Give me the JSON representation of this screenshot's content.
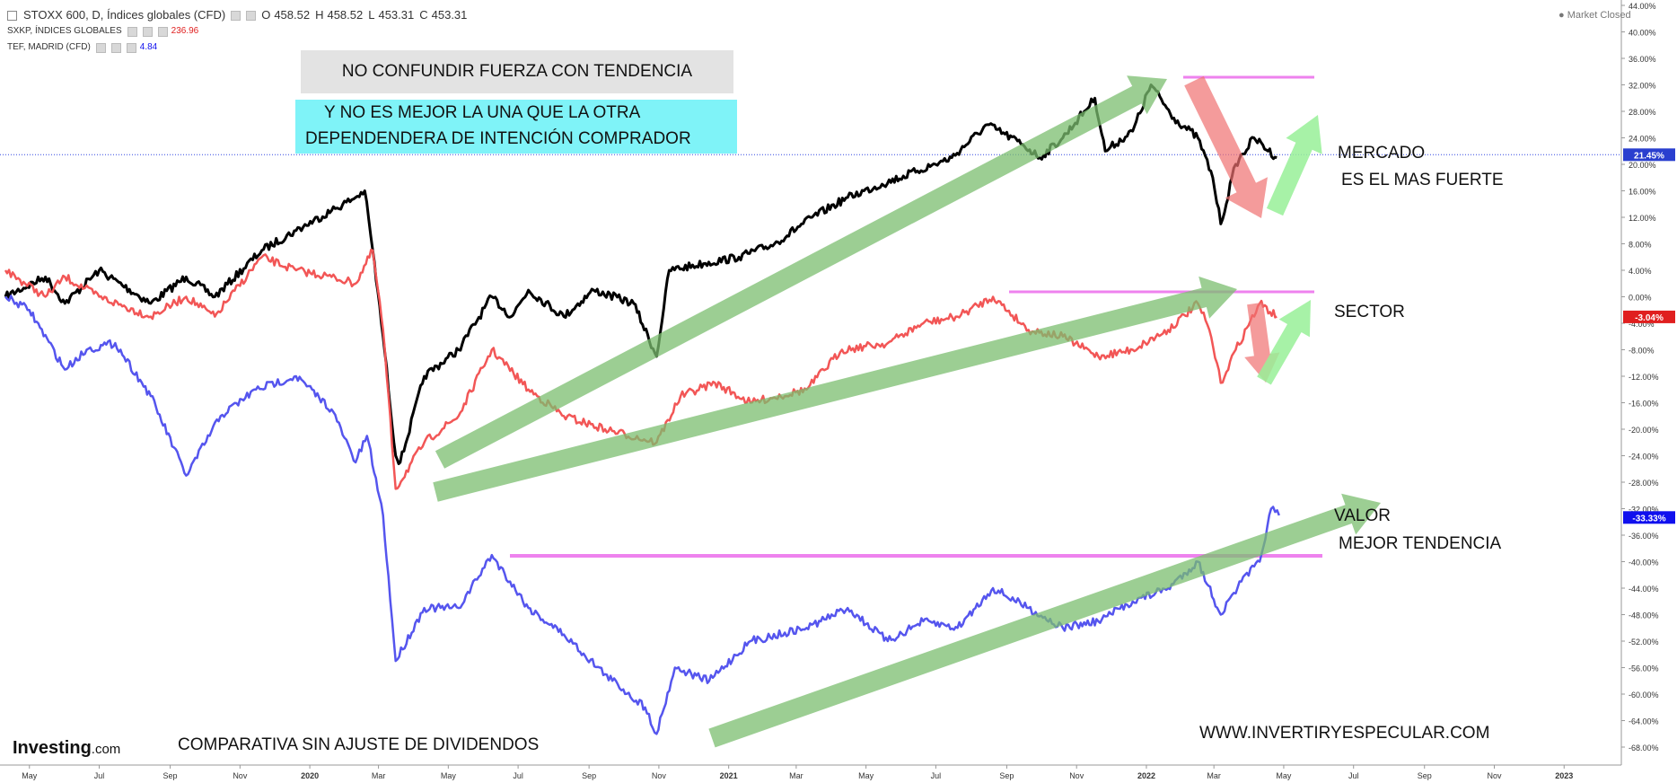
{
  "legend": {
    "main": {
      "name": "STOXX 600, D, Índices globales (CFD)",
      "o_label": "O",
      "o": "458.52",
      "h_label": "H",
      "h": "458.52",
      "l_label": "L",
      "l": "453.31",
      "c_label": "C",
      "c": "453.31"
    },
    "s2": {
      "name": "SXKP, ÍNDICES GLOBALES",
      "value": "236.96",
      "color": "#ff2d2d"
    },
    "s3": {
      "name": "TEF, MADRID (CFD)",
      "value": "4.84",
      "color": "#2020ff"
    }
  },
  "market_status": "Market Closed",
  "annotations": {
    "box1": "NO CONFUNDIR FUERZA CON TENDENCIA",
    "box2_line1": "Y NO ES MEJOR LA UNA QUE LA OTRA",
    "box2_line2": "DEPENDENDERA DE INTENCIÓN COMPRADOR",
    "mercado": "MERCADO",
    "mercado2": "ES EL MAS FUERTE",
    "sector": "SECTOR",
    "valor": "VALOR",
    "valor2": "MEJOR TENDENCIA",
    "footnote": "COMPARATIVA SIN AJUSTE DE DIVIDENDOS",
    "website": "WWW.INVERTIRYESPECULAR.COM"
  },
  "logo": {
    "main": "Investing",
    "suffix": ".com"
  },
  "colors": {
    "market": "#000000",
    "sector": "#f25656",
    "stock": "#5555ee",
    "arrow_up": "#7bbd6f",
    "arrow_down": "#f07070",
    "arrow_light": "#98f098",
    "magenta": "#ee82ee"
  },
  "chart_data": {
    "type": "line",
    "y_scale": "percent change",
    "ylim": [
      -70,
      44
    ],
    "y_ticks": [
      44,
      40,
      36,
      32,
      28,
      24,
      20,
      16,
      12,
      8,
      4,
      0,
      -4,
      -8,
      -12,
      -16,
      -20,
      -24,
      -28,
      -32,
      -36,
      -40,
      -44,
      -48,
      -52,
      -56,
      -60,
      -64,
      -68
    ],
    "x_ticks": [
      "May",
      "Jul",
      "Sep",
      "Nov",
      "2020",
      "Mar",
      "May",
      "Jul",
      "Sep",
      "Nov",
      "2021",
      "Mar",
      "May",
      "Jul",
      "Sep",
      "Nov",
      "2022",
      "Mar",
      "May",
      "Jul",
      "Sep",
      "Nov",
      "2023"
    ],
    "x_range": [
      "2019-04-10",
      "2023-02-20"
    ],
    "last_value_tags": [
      {
        "label": "21.45%",
        "value": 21.45,
        "color": "#2a3fcf"
      },
      {
        "label": "-3.04%",
        "value": -3.04,
        "color": "#e01f1f"
      },
      {
        "label": "-33.33%",
        "value": -33.33,
        "color": "#1010ee"
      }
    ],
    "series": [
      {
        "ticker": "STOXX 600",
        "color": "#000000",
        "points": [
          [
            "2019-04-10",
            0
          ],
          [
            "2019-05-15",
            3
          ],
          [
            "2019-06-01",
            -1
          ],
          [
            "2019-07-01",
            4
          ],
          [
            "2019-08-15",
            -1
          ],
          [
            "2019-09-15",
            3
          ],
          [
            "2019-10-10",
            0
          ],
          [
            "2019-11-20",
            7
          ],
          [
            "2019-12-20",
            10
          ],
          [
            "2020-01-20",
            13
          ],
          [
            "2020-02-10",
            15
          ],
          [
            "2020-02-18",
            16
          ],
          [
            "2020-02-25",
            7
          ],
          [
            "2020-03-05",
            -6
          ],
          [
            "2020-03-16",
            -24
          ],
          [
            "2020-03-20",
            -25
          ],
          [
            "2020-04-10",
            -12
          ],
          [
            "2020-05-10",
            -8
          ],
          [
            "2020-06-08",
            0
          ],
          [
            "2020-06-25",
            -3
          ],
          [
            "2020-07-10",
            1
          ],
          [
            "2020-08-10",
            -3
          ],
          [
            "2020-09-05",
            1
          ],
          [
            "2020-10-10",
            -1
          ],
          [
            "2020-10-30",
            -9
          ],
          [
            "2020-11-10",
            4
          ],
          [
            "2020-12-10",
            5
          ],
          [
            "2021-01-10",
            6
          ],
          [
            "2021-02-10",
            8
          ],
          [
            "2021-03-15",
            12
          ],
          [
            "2021-04-15",
            15
          ],
          [
            "2021-05-15",
            17
          ],
          [
            "2021-06-15",
            19
          ],
          [
            "2021-07-15",
            21
          ],
          [
            "2021-08-15",
            26
          ],
          [
            "2021-09-15",
            23
          ],
          [
            "2021-09-30",
            21
          ],
          [
            "2021-10-20",
            24
          ],
          [
            "2021-11-17",
            30
          ],
          [
            "2021-11-26",
            22
          ],
          [
            "2021-12-20",
            25
          ],
          [
            "2022-01-05",
            32
          ],
          [
            "2022-01-25",
            27
          ],
          [
            "2022-02-15",
            24
          ],
          [
            "2022-02-28",
            18
          ],
          [
            "2022-03-07",
            11
          ],
          [
            "2022-03-20",
            20
          ],
          [
            "2022-04-05",
            24
          ],
          [
            "2022-04-25",
            21
          ]
        ]
      },
      {
        "ticker": "SXKP",
        "color": "#f25656",
        "points": [
          [
            "2019-04-10",
            4
          ],
          [
            "2019-05-15",
            0
          ],
          [
            "2019-06-01",
            3
          ],
          [
            "2019-07-01",
            0
          ],
          [
            "2019-08-15",
            -3
          ],
          [
            "2019-09-15",
            0
          ],
          [
            "2019-10-10",
            -3
          ],
          [
            "2019-11-20",
            6
          ],
          [
            "2019-12-20",
            4
          ],
          [
            "2020-01-20",
            3
          ],
          [
            "2020-02-10",
            2
          ],
          [
            "2020-02-25",
            7
          ],
          [
            "2020-03-05",
            -5
          ],
          [
            "2020-03-16",
            -29
          ],
          [
            "2020-04-10",
            -22
          ],
          [
            "2020-05-10",
            -18
          ],
          [
            "2020-06-08",
            -8
          ],
          [
            "2020-07-10",
            -14
          ],
          [
            "2020-08-10",
            -18
          ],
          [
            "2020-09-15",
            -20
          ],
          [
            "2020-10-30",
            -22
          ],
          [
            "2020-11-20",
            -15
          ],
          [
            "2020-12-20",
            -13
          ],
          [
            "2021-01-20",
            -16
          ],
          [
            "2021-03-10",
            -14
          ],
          [
            "2021-04-10",
            -8
          ],
          [
            "2021-05-20",
            -7
          ],
          [
            "2021-06-20",
            -4
          ],
          [
            "2021-07-20",
            -3
          ],
          [
            "2021-08-20",
            0
          ],
          [
            "2021-09-20",
            -5
          ],
          [
            "2021-10-20",
            -6
          ],
          [
            "2021-11-20",
            -9
          ],
          [
            "2021-12-20",
            -8
          ],
          [
            "2022-01-20",
            -5
          ],
          [
            "2022-02-15",
            -1
          ],
          [
            "2022-02-25",
            -5
          ],
          [
            "2022-03-07",
            -13
          ],
          [
            "2022-03-20",
            -8
          ],
          [
            "2022-04-10",
            -1
          ],
          [
            "2022-04-25",
            -3
          ]
        ]
      },
      {
        "ticker": "TEF",
        "color": "#5555ee",
        "points": [
          [
            "2019-04-10",
            0
          ],
          [
            "2019-05-01",
            -2
          ],
          [
            "2019-06-01",
            -11
          ],
          [
            "2019-06-20",
            -8
          ],
          [
            "2019-07-15",
            -7
          ],
          [
            "2019-08-15",
            -15
          ],
          [
            "2019-09-15",
            -27
          ],
          [
            "2019-10-15",
            -18
          ],
          [
            "2019-11-15",
            -14
          ],
          [
            "2019-12-20",
            -12
          ],
          [
            "2020-01-20",
            -17
          ],
          [
            "2020-02-10",
            -25
          ],
          [
            "2020-02-20",
            -21
          ],
          [
            "2020-03-05",
            -33
          ],
          [
            "2020-03-16",
            -55
          ],
          [
            "2020-04-10",
            -47
          ],
          [
            "2020-05-10",
            -47
          ],
          [
            "2020-06-08",
            -39
          ],
          [
            "2020-07-10",
            -47
          ],
          [
            "2020-08-10",
            -51
          ],
          [
            "2020-09-15",
            -57
          ],
          [
            "2020-10-20",
            -62
          ],
          [
            "2020-10-30",
            -66
          ],
          [
            "2020-11-15",
            -56
          ],
          [
            "2020-12-15",
            -58
          ],
          [
            "2021-01-20",
            -52
          ],
          [
            "2021-03-10",
            -50
          ],
          [
            "2021-04-15",
            -47
          ],
          [
            "2021-05-20",
            -52
          ],
          [
            "2021-06-20",
            -49
          ],
          [
            "2021-07-20",
            -50
          ],
          [
            "2021-08-20",
            -44
          ],
          [
            "2021-09-20",
            -47
          ],
          [
            "2021-10-20",
            -50
          ],
          [
            "2021-11-20",
            -49
          ],
          [
            "2021-12-20",
            -46
          ],
          [
            "2022-01-20",
            -44
          ],
          [
            "2022-02-15",
            -40
          ],
          [
            "2022-03-07",
            -48
          ],
          [
            "2022-03-25",
            -43
          ],
          [
            "2022-04-10",
            -40
          ],
          [
            "2022-04-20",
            -32
          ],
          [
            "2022-04-27",
            -33
          ]
        ]
      }
    ]
  }
}
